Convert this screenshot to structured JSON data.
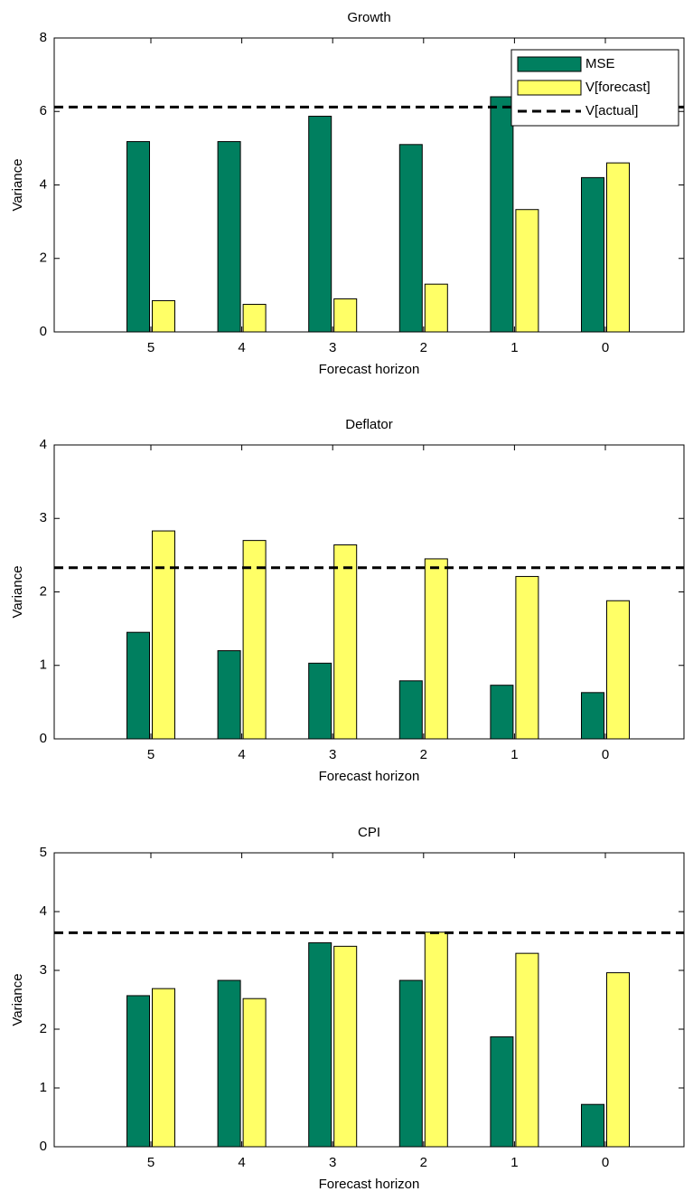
{
  "chart_data": [
    {
      "type": "bar",
      "title": "Growth",
      "xlabel": "Forecast horizon",
      "ylabel": "Variance",
      "categories": [
        "5",
        "4",
        "3",
        "2",
        "1",
        "0"
      ],
      "series": [
        {
          "name": "MSE",
          "color": "#007f5f",
          "values": [
            5.18,
            5.18,
            5.87,
            5.1,
            6.4,
            4.2
          ]
        },
        {
          "name": "V[forecast]",
          "color": "#ffff66",
          "values": [
            0.85,
            0.75,
            0.9,
            1.3,
            3.33,
            4.6
          ]
        }
      ],
      "hline": {
        "name": "V[actual]",
        "value": 6.12,
        "color": "#000000",
        "style": "dashed"
      },
      "ylim": [
        0,
        8
      ],
      "yticks": [
        0,
        2,
        4,
        6,
        8
      ],
      "legend": "upper right"
    },
    {
      "type": "bar",
      "title": "Deflator",
      "xlabel": "Forecast horizon",
      "ylabel": "Variance",
      "categories": [
        "5",
        "4",
        "3",
        "2",
        "1",
        "0"
      ],
      "series": [
        {
          "color": "#007f5f",
          "values": [
            1.45,
            1.2,
            1.03,
            0.79,
            0.73,
            0.63
          ]
        },
        {
          "color": "#ffff66",
          "values": [
            2.83,
            2.7,
            2.64,
            2.45,
            2.21,
            1.88
          ]
        }
      ],
      "hline": {
        "value": 2.33,
        "color": "#000000",
        "style": "dashed"
      },
      "ylim": [
        0,
        4
      ],
      "yticks": [
        0,
        1,
        2,
        3,
        4
      ]
    },
    {
      "type": "bar",
      "title": "CPI",
      "xlabel": "Forecast horizon",
      "ylabel": "Variance",
      "categories": [
        "5",
        "4",
        "3",
        "2",
        "1",
        "0"
      ],
      "series": [
        {
          "color": "#007f5f",
          "values": [
            2.57,
            2.83,
            3.47,
            2.83,
            1.87,
            0.72
          ]
        },
        {
          "color": "#ffff66",
          "values": [
            2.69,
            2.52,
            3.41,
            3.65,
            3.29,
            2.96
          ]
        }
      ],
      "hline": {
        "value": 3.64,
        "color": "#000000",
        "style": "dashed"
      },
      "ylim": [
        0,
        5
      ],
      "yticks": [
        0,
        1,
        2,
        3,
        4,
        5
      ]
    }
  ]
}
